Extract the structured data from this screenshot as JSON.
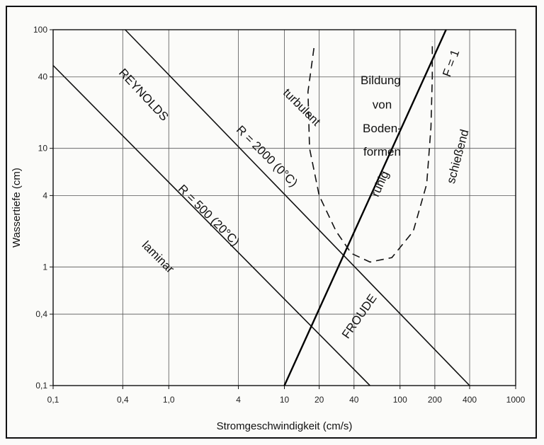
{
  "chart_data": {
    "type": "line",
    "xlabel": "Stromgeschwindigkeit (cm/s)",
    "ylabel": "Wassertiefe (cm)",
    "x_scale": "log",
    "y_scale": "log",
    "xlim": [
      0.1,
      1000
    ],
    "ylim": [
      0.1,
      100
    ],
    "x_ticks": [
      {
        "v": 0.1,
        "label": "0,1"
      },
      {
        "v": 0.4,
        "label": "0,4"
      },
      {
        "v": 1,
        "label": "1,0"
      },
      {
        "v": 4,
        "label": "4"
      },
      {
        "v": 10,
        "label": "10"
      },
      {
        "v": 20,
        "label": "20"
      },
      {
        "v": 40,
        "label": "40"
      },
      {
        "v": 100,
        "label": "100"
      },
      {
        "v": 200,
        "label": "200"
      },
      {
        "v": 400,
        "label": "400"
      },
      {
        "v": 1000,
        "label": "1000"
      }
    ],
    "y_ticks": [
      {
        "v": 0.1,
        "label": "0,1"
      },
      {
        "v": 0.4,
        "label": "0,4"
      },
      {
        "v": 1,
        "label": "1"
      },
      {
        "v": 4,
        "label": "4"
      },
      {
        "v": 10,
        "label": "10"
      },
      {
        "v": 40,
        "label": "40"
      },
      {
        "v": 100,
        "label": "100"
      }
    ],
    "series": [
      {
        "name": "R = 500 (20°C)",
        "style": "solid",
        "x": [
          0.1,
          55
        ],
        "y": [
          50,
          0.1
        ]
      },
      {
        "name": "R = 2000 (0°C)",
        "style": "solid",
        "x": [
          0.42,
          400
        ],
        "y": [
          100,
          0.1
        ]
      },
      {
        "name": "F = 1",
        "style": "thick",
        "x": [
          10,
          250
        ],
        "y": [
          0.1,
          100
        ]
      },
      {
        "name": "Bildung von Bodenformen",
        "style": "dashed",
        "x": [
          18,
          16,
          16.5,
          20,
          28,
          38,
          55,
          85,
          130,
          170,
          185,
          190,
          190
        ],
        "y": [
          70,
          30,
          10,
          4,
          2,
          1.3,
          1.1,
          1.2,
          2,
          5,
          15,
          40,
          80
        ]
      }
    ],
    "annotations": [
      {
        "text": "REYNOLDS",
        "x": 0.6,
        "y": 28,
        "angle": 47
      },
      {
        "text": "R = 2000 (0°C)",
        "x": 7,
        "y": 8.5,
        "angle": 45
      },
      {
        "text": "R = 500 (20°C)",
        "x": 2.2,
        "y": 2.7,
        "angle": 45
      },
      {
        "text": "turbulent",
        "x": 14,
        "y": 22,
        "angle": 45
      },
      {
        "text": "laminar",
        "x": 0.8,
        "y": 1.2,
        "angle": 45
      },
      {
        "text": "FROUDE",
        "x": 45,
        "y": 0.38,
        "angle": -55
      },
      {
        "text": "ruhig",
        "x": 68,
        "y": 5,
        "angle": -66
      },
      {
        "text": "schießend",
        "x": 320,
        "y": 8.5,
        "angle": -75
      },
      {
        "text": "F = 1",
        "x": 280,
        "y": 52,
        "angle": -70
      },
      {
        "text": "Bildung",
        "x": 68,
        "y": 37,
        "angle": 0
      },
      {
        "text": "von",
        "x": 70,
        "y": 23,
        "angle": 0
      },
      {
        "text": "Boden-",
        "x": 70,
        "y": 14.5,
        "angle": 0
      },
      {
        "text": "formen",
        "x": 70,
        "y": 9.2,
        "angle": 0
      }
    ]
  }
}
